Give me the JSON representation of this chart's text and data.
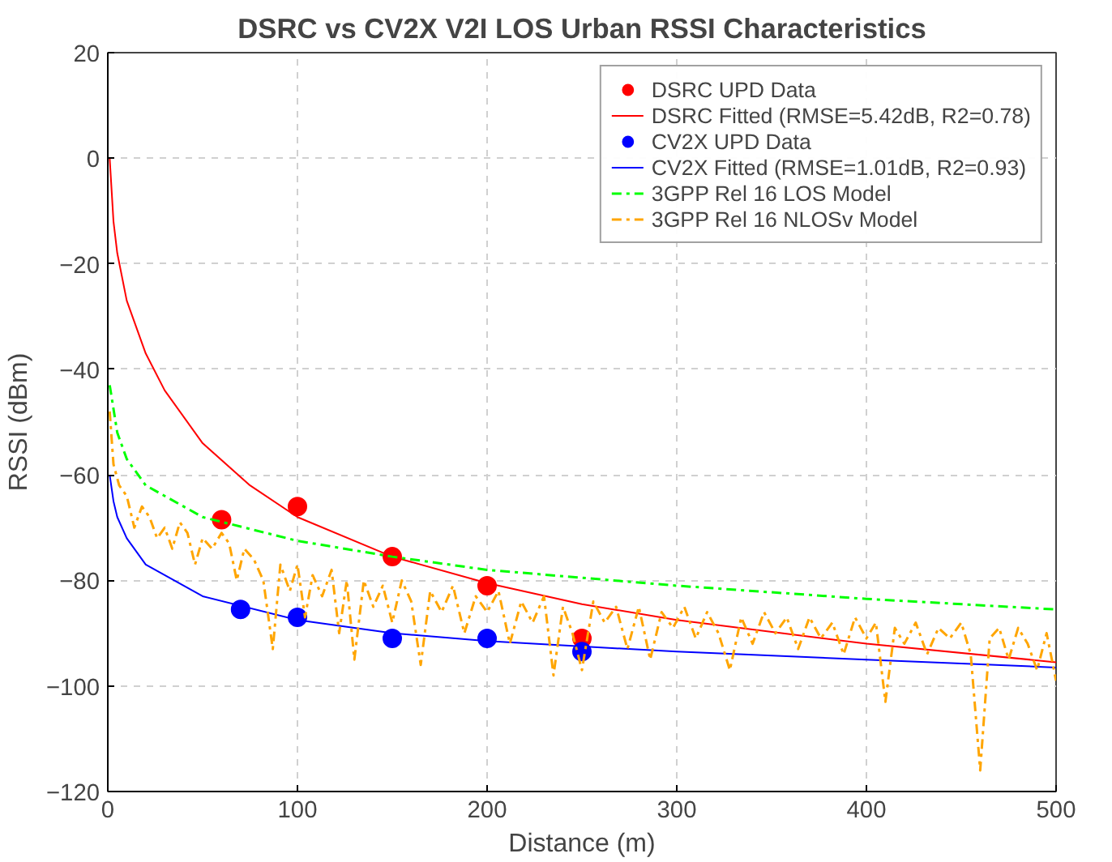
{
  "chart_data": {
    "type": "line",
    "title": "DSRC vs CV2X V2I LOS Urban RSSI Characteristics",
    "xlabel": "Distance (m)",
    "ylabel": "RSSI (dBm)",
    "xlim": [
      0,
      500
    ],
    "ylim": [
      -120,
      20
    ],
    "xticks": [
      0,
      100,
      200,
      300,
      400,
      500
    ],
    "yticks": [
      -120,
      -100,
      -80,
      -60,
      -40,
      -20,
      0,
      20
    ],
    "grid": true,
    "legend": "top right",
    "series": [
      {
        "name": "DSRC UPD Data",
        "type": "scatter",
        "marker": "circle",
        "color": "#ff0000",
        "x": [
          60,
          100,
          150,
          200,
          250
        ],
        "values": [
          -68.5,
          -66,
          -75.5,
          -81,
          -91
        ]
      },
      {
        "name": "DSRC Fitted (RMSE=5.42dB, R2=0.78)",
        "line_style": "solid",
        "color": "#ff0000",
        "x": [
          1,
          3,
          5,
          10,
          20,
          30,
          50,
          75,
          100,
          150,
          200,
          250,
          300,
          400,
          500
        ],
        "values": [
          0,
          -12,
          -18,
          -27,
          -37,
          -44,
          -54,
          -62,
          -68,
          -75.5,
          -80.5,
          -84.5,
          -87.5,
          -92,
          -95.5
        ]
      },
      {
        "name": "CV2X UPD Data",
        "type": "scatter",
        "marker": "circle",
        "color": "#0000ff",
        "x": [
          70,
          100,
          150,
          200,
          250
        ],
        "values": [
          -85.5,
          -87,
          -91,
          -91,
          -93.5
        ]
      },
      {
        "name": "CV2X Fitted (RMSE=1.01dB, R2=0.93)",
        "line_style": "solid",
        "color": "#0000ff",
        "x": [
          1,
          3,
          5,
          10,
          20,
          50,
          100,
          150,
          200,
          300,
          400,
          500
        ],
        "values": [
          -60,
          -65,
          -68,
          -72,
          -77,
          -83,
          -87.5,
          -90,
          -91.5,
          -93.5,
          -95,
          -96.5
        ]
      },
      {
        "name": "3GPP Rel 16 LOS Model",
        "line_style": "dashdot",
        "color": "#00ff00",
        "x": [
          1,
          5,
          10,
          20,
          50,
          100,
          150,
          200,
          300,
          400,
          500
        ],
        "values": [
          -43,
          -52,
          -57,
          -62,
          -68,
          -72.5,
          -75.5,
          -78,
          -81,
          -83.5,
          -85.5
        ]
      },
      {
        "name": "3GPP Rel 16 NLOSv Model",
        "line_style": "dashdot",
        "color": "#ffa500",
        "x": [
          1,
          3,
          6,
          10,
          14,
          18,
          22,
          26,
          30,
          34,
          38,
          42,
          46,
          50,
          55,
          60,
          64,
          68,
          72,
          77,
          82,
          87,
          91,
          96,
          100,
          104,
          108,
          113,
          118,
          122,
          126,
          130,
          135,
          140,
          145,
          150,
          155,
          160,
          165,
          170,
          176,
          182,
          188,
          194,
          200,
          206,
          212,
          218,
          224,
          230,
          235,
          240,
          245,
          250,
          256,
          262,
          268,
          274,
          280,
          286,
          292,
          298,
          304,
          310,
          316,
          322,
          328,
          334,
          340,
          346,
          352,
          358,
          364,
          370,
          376,
          382,
          388,
          394,
          400,
          405,
          410,
          415,
          420,
          426,
          432,
          438,
          444,
          450,
          455,
          460,
          465,
          470,
          475,
          480,
          485,
          490,
          495,
          500
        ],
        "values": [
          -48,
          -58,
          -62,
          -64,
          -70,
          -66,
          -68,
          -72,
          -70,
          -74,
          -69,
          -71,
          -77,
          -72,
          -74,
          -71,
          -73,
          -80,
          -74,
          -76,
          -80,
          -93,
          -77,
          -82,
          -77,
          -87,
          -79,
          -83,
          -78,
          -90,
          -80,
          -95,
          -80,
          -85,
          -81,
          -88,
          -80,
          -84,
          -96,
          -82,
          -86,
          -81,
          -90,
          -83,
          -86,
          -82,
          -92,
          -84,
          -88,
          -83,
          -98,
          -85,
          -90,
          -97,
          -84,
          -88,
          -85,
          -93,
          -85,
          -95,
          -86,
          -89,
          -85,
          -91,
          -86,
          -90,
          -97,
          -87,
          -92,
          -86,
          -90,
          -87,
          -93,
          -87,
          -91,
          -88,
          -94,
          -87,
          -91,
          -88,
          -103,
          -89,
          -92,
          -88,
          -94,
          -89,
          -91,
          -88,
          -94,
          -116,
          -91,
          -89,
          -95,
          -89,
          -92,
          -97,
          -90,
          -99
        ]
      }
    ]
  }
}
